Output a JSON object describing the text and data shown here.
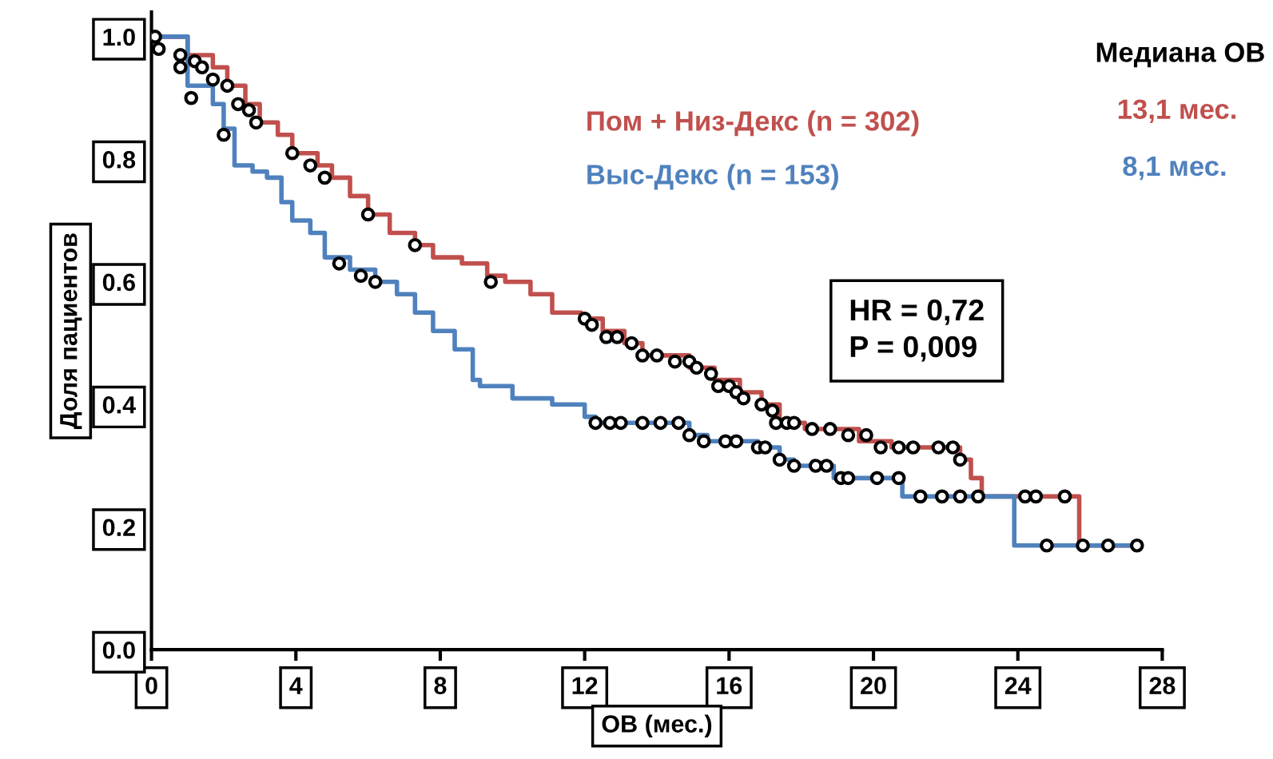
{
  "chart_data": {
    "type": "step",
    "xlabel": "ОВ (мес.)",
    "ylabel": "Доля пациентов",
    "xlim": [
      0,
      28
    ],
    "xticks": [
      0,
      4,
      8,
      12,
      16,
      20,
      24,
      28
    ],
    "ylim": [
      0,
      1.04
    ],
    "yticks": [
      {
        "value": 0,
        "label": "0.0"
      },
      {
        "value": 0.2,
        "label": "0.2"
      },
      {
        "value": 0.4,
        "label": "0.4"
      },
      {
        "value": 0.6,
        "label": "0.6"
      },
      {
        "value": 0.8,
        "label": "0.8"
      },
      {
        "value": 1,
        "label": "1.0"
      }
    ],
    "grid": false,
    "legend": "top right",
    "marker": "none",
    "line_style": "solid",
    "series": [
      {
        "name": "Пом + Низ-Декс (n = 302)",
        "color": "#c0504d",
        "x": [
          0,
          1,
          1.7,
          2.1,
          2.6,
          3.0,
          3.5,
          3.9,
          4.6,
          5.0,
          5.5,
          6.0,
          6.6,
          7.3,
          7.8,
          8.6,
          9.3,
          9.8,
          10.5,
          11.1,
          11.9,
          12.5,
          13.1,
          13.6,
          14.2,
          14.9,
          15.6,
          16.3,
          16.9,
          17.4,
          18.1,
          19.2,
          19.6,
          20.5,
          22.4,
          22.7,
          23.0,
          25.7,
          27.3
        ],
        "values": [
          1.0,
          0.97,
          0.95,
          0.92,
          0.89,
          0.86,
          0.84,
          0.81,
          0.79,
          0.77,
          0.74,
          0.71,
          0.68,
          0.66,
          0.64,
          0.63,
          0.61,
          0.6,
          0.58,
          0.55,
          0.54,
          0.52,
          0.5,
          0.48,
          0.48,
          0.46,
          0.44,
          0.42,
          0.4,
          0.37,
          0.36,
          0.36,
          0.34,
          0.33,
          0.31,
          0.28,
          0.25,
          0.17,
          0.17
        ]
      },
      {
        "name": "Выс-Декс (n = 153)",
        "color": "#4f81bd",
        "x": [
          0,
          1.0,
          1.7,
          2.0,
          2.3,
          2.8,
          3.2,
          3.6,
          3.9,
          4.4,
          4.8,
          5.5,
          6.2,
          6.8,
          7.3,
          7.8,
          8.4,
          8.9,
          9.1,
          10.0,
          11.1,
          12.0,
          12.3,
          14.9,
          15.4,
          16.8,
          17.4,
          17.8,
          18.9,
          20.8,
          23.9,
          27.3
        ],
        "values": [
          1.0,
          0.92,
          0.89,
          0.85,
          0.79,
          0.78,
          0.77,
          0.73,
          0.7,
          0.68,
          0.64,
          0.62,
          0.6,
          0.58,
          0.55,
          0.52,
          0.49,
          0.44,
          0.43,
          0.41,
          0.4,
          0.38,
          0.37,
          0.35,
          0.34,
          0.33,
          0.31,
          0.3,
          0.28,
          0.25,
          0.17,
          0.17
        ]
      },
      {
        "type": "scatter",
        "color": "#000000",
        "marker": "circle",
        "x": [
          0.1,
          0.2,
          0.8,
          0.8,
          1.2,
          1.4,
          1.7,
          2.1,
          2.4,
          2.7,
          2.9,
          3.9,
          4.4,
          4.8,
          6.0,
          7.3,
          9.4,
          12.0,
          12.2,
          12.6,
          12.9,
          13.3,
          13.6,
          14.0,
          14.5,
          14.9,
          15.1,
          15.5,
          15.7,
          16.0,
          16.2,
          16.4,
          16.9,
          17.2,
          17.3,
          17.6,
          17.8,
          18.3,
          18.8,
          19.3,
          19.8,
          20.2,
          20.7,
          21.1,
          21.8,
          22.2,
          22.4,
          22.9,
          24.2,
          24.5,
          25.3,
          25.8,
          26.5,
          27.3
        ],
        "values": [
          1.0,
          0.98,
          0.97,
          0.95,
          0.96,
          0.95,
          0.93,
          0.92,
          0.89,
          0.88,
          0.86,
          0.81,
          0.79,
          0.77,
          0.71,
          0.66,
          0.6,
          0.54,
          0.53,
          0.51,
          0.51,
          0.5,
          0.48,
          0.48,
          0.47,
          0.47,
          0.46,
          0.45,
          0.43,
          0.43,
          0.42,
          0.41,
          0.4,
          0.39,
          0.37,
          0.37,
          0.37,
          0.36,
          0.36,
          0.35,
          0.35,
          0.33,
          0.33,
          0.33,
          0.33,
          0.33,
          0.31,
          0.25,
          0.25,
          0.25,
          0.25,
          0.17,
          0.17,
          0.17
        ]
      },
      {
        "type": "scatter",
        "color": "#000000",
        "marker": "circle",
        "x": [
          1.1,
          2.0,
          5.2,
          5.8,
          6.2,
          12.3,
          12.7,
          13.0,
          13.6,
          14.1,
          14.6,
          14.9,
          15.3,
          15.9,
          16.2,
          16.8,
          17.0,
          17.4,
          17.8,
          18.4,
          18.7,
          19.1,
          19.3,
          20.1,
          20.7,
          21.3,
          21.9,
          22.4,
          24.8
        ],
        "values": [
          0.9,
          0.84,
          0.63,
          0.61,
          0.6,
          0.37,
          0.37,
          0.37,
          0.37,
          0.37,
          0.37,
          0.35,
          0.34,
          0.34,
          0.34,
          0.33,
          0.33,
          0.31,
          0.3,
          0.3,
          0.3,
          0.28,
          0.28,
          0.28,
          0.28,
          0.25,
          0.25,
          0.25,
          0.17
        ]
      }
    ],
    "annotations": [
      "Медиана ОВ",
      "13,1 мес.",
      "8,1 мес.",
      "HR = 0,72",
      "P = 0,009"
    ]
  }
}
